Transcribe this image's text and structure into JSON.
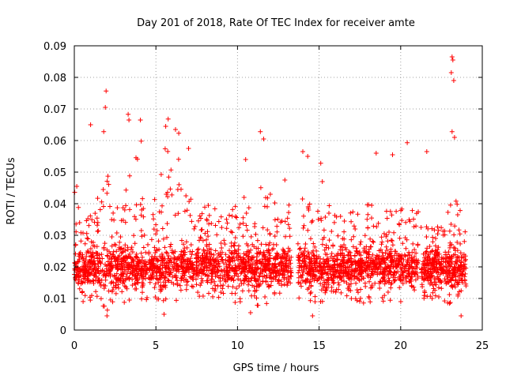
{
  "chart_data": {
    "type": "scatter",
    "title": "Day 201 of 2018, Rate Of TEC Index for receiver amte",
    "xlabel": "GPS time / hours",
    "ylabel": "ROTI / TECUs",
    "xlim": [
      0,
      25
    ],
    "ylim": [
      0,
      0.09
    ],
    "xticks": [
      0,
      5,
      10,
      15,
      20,
      25
    ],
    "xtick_labels": [
      "0",
      "5",
      "10",
      "15",
      "20",
      "25"
    ],
    "yticks": [
      0,
      0.01,
      0.02,
      0.03,
      0.04,
      0.05,
      0.06,
      0.07,
      0.08,
      0.09
    ],
    "ytick_labels": [
      "0",
      "0.01",
      "0.02",
      "0.03",
      "0.04",
      "0.05",
      "0.06",
      "0.07",
      "0.08",
      "0.09"
    ],
    "grid": true,
    "marker": "+",
    "color": "#ff0000",
    "series": [
      {
        "name": "ROTI",
        "envelope": [
          [
            0.0,
            0.008,
            0.045
          ],
          [
            0.5,
            0.009,
            0.035
          ],
          [
            1.0,
            0.009,
            0.038
          ],
          [
            1.5,
            0.008,
            0.045
          ],
          [
            2.0,
            0.006,
            0.052
          ],
          [
            2.5,
            0.009,
            0.04
          ],
          [
            3.0,
            0.008,
            0.043
          ],
          [
            3.5,
            0.009,
            0.055
          ],
          [
            4.0,
            0.008,
            0.055
          ],
          [
            4.5,
            0.009,
            0.038
          ],
          [
            5.0,
            0.009,
            0.042
          ],
          [
            5.5,
            0.008,
            0.06
          ],
          [
            6.0,
            0.009,
            0.057
          ],
          [
            6.5,
            0.009,
            0.055
          ],
          [
            7.0,
            0.009,
            0.045
          ],
          [
            7.5,
            0.009,
            0.034
          ],
          [
            8.0,
            0.008,
            0.04
          ],
          [
            8.5,
            0.008,
            0.04
          ],
          [
            9.0,
            0.008,
            0.04
          ],
          [
            9.5,
            0.008,
            0.037
          ],
          [
            10.0,
            0.008,
            0.04
          ],
          [
            10.5,
            0.008,
            0.045
          ],
          [
            11.0,
            0.008,
            0.043
          ],
          [
            11.5,
            0.007,
            0.05
          ],
          [
            12.0,
            0.007,
            0.044
          ],
          [
            12.5,
            0.008,
            0.04
          ],
          [
            13.0,
            0.008,
            0.042
          ],
          [
            13.3,
            0.008,
            0.045
          ],
          [
            14.0,
            0.008,
            0.042
          ],
          [
            14.5,
            0.008,
            0.042
          ],
          [
            15.0,
            0.009,
            0.042
          ],
          [
            15.5,
            0.008,
            0.04
          ],
          [
            16.0,
            0.008,
            0.04
          ],
          [
            16.5,
            0.009,
            0.038
          ],
          [
            17.0,
            0.008,
            0.038
          ],
          [
            17.5,
            0.008,
            0.038
          ],
          [
            18.0,
            0.008,
            0.04
          ],
          [
            18.5,
            0.008,
            0.04
          ],
          [
            19.0,
            0.009,
            0.04
          ],
          [
            19.5,
            0.009,
            0.038
          ],
          [
            20.0,
            0.008,
            0.04
          ],
          [
            20.5,
            0.009,
            0.04
          ],
          [
            21.0,
            0.01,
            0.038
          ],
          [
            21.5,
            0.01,
            0.036
          ],
          [
            22.0,
            0.01,
            0.034
          ],
          [
            22.5,
            0.009,
            0.034
          ],
          [
            23.0,
            0.008,
            0.04
          ],
          [
            23.5,
            0.007,
            0.042
          ],
          [
            24.0,
            0.01,
            0.03
          ]
        ],
        "gaps": [
          [
            13.3,
            13.7
          ],
          [
            21.1,
            21.25
          ]
        ],
        "notable_points": [
          [
            0.15,
            0.0455
          ],
          [
            1.0,
            0.065
          ],
          [
            1.95,
            0.0757
          ],
          [
            1.9,
            0.0705
          ],
          [
            1.8,
            0.0628
          ],
          [
            3.3,
            0.0683
          ],
          [
            3.35,
            0.0665
          ],
          [
            4.05,
            0.0665
          ],
          [
            4.1,
            0.0598
          ],
          [
            5.75,
            0.0668
          ],
          [
            5.6,
            0.0645
          ],
          [
            6.2,
            0.0635
          ],
          [
            6.4,
            0.0623
          ],
          [
            7.0,
            0.0575
          ],
          [
            10.5,
            0.054
          ],
          [
            11.4,
            0.0628
          ],
          [
            11.6,
            0.0605
          ],
          [
            12.9,
            0.0475
          ],
          [
            14.0,
            0.0565
          ],
          [
            14.3,
            0.055
          ],
          [
            15.1,
            0.0528
          ],
          [
            15.2,
            0.047
          ],
          [
            18.5,
            0.056
          ],
          [
            19.5,
            0.0555
          ],
          [
            20.4,
            0.0593
          ],
          [
            21.6,
            0.0565
          ],
          [
            23.15,
            0.0865
          ],
          [
            23.2,
            0.0855
          ],
          [
            23.1,
            0.0815
          ],
          [
            23.25,
            0.079
          ],
          [
            23.15,
            0.0628
          ],
          [
            23.3,
            0.061
          ],
          [
            2.0,
            0.0045
          ],
          [
            5.5,
            0.005
          ],
          [
            23.7,
            0.0045
          ],
          [
            14.6,
            0.0045
          ],
          [
            10.8,
            0.0055
          ]
        ]
      }
    ]
  }
}
